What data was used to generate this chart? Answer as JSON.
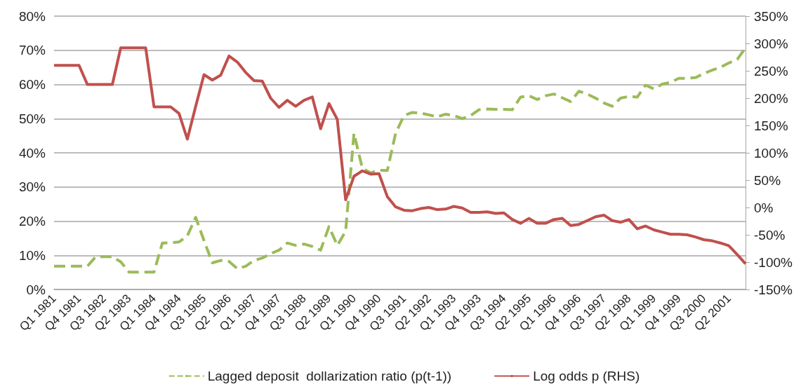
{
  "chart_data": {
    "type": "line",
    "categories": [
      "Q1 1981",
      null,
      null,
      "Q4 1981",
      null,
      null,
      "Q3 1982",
      null,
      null,
      "Q2 1983",
      null,
      null,
      "Q1 1984",
      null,
      null,
      "Q4 1984",
      null,
      null,
      "Q3 1985",
      null,
      null,
      "Q2 1986",
      null,
      null,
      "Q1 1987",
      null,
      null,
      "Q4 1987",
      null,
      null,
      "Q3 1988",
      null,
      null,
      "Q2 1989",
      null,
      null,
      "Q1 1990",
      null,
      null,
      "Q4 1990",
      null,
      null,
      "Q3 1991",
      null,
      null,
      "Q2 1992",
      null,
      null,
      "Q1 1993",
      null,
      null,
      "Q4 1993",
      null,
      null,
      "Q3 1994",
      null,
      null,
      "Q2 1995",
      null,
      null,
      "Q1 1996",
      null,
      null,
      "Q4 1996",
      null,
      null,
      "Q3 1997",
      null,
      null,
      "Q2 1998",
      null,
      null,
      "Q1 1999",
      null,
      null,
      "Q4 1999",
      null,
      null,
      "Q3 2000",
      null,
      null,
      "Q2 2001",
      null,
      null
    ],
    "series": [
      {
        "name": "Lagged deposit  dollarization ratio (p(t-1))",
        "color": "#9bbb59",
        "line_style": "dashed",
        "values": [
          6.8,
          6.8,
          6.8,
          6.8,
          6.8,
          9.6,
          9.6,
          9.6,
          8.1,
          5.1,
          5.1,
          5.1,
          5.1,
          13.6,
          13.7,
          13.9,
          15.7,
          21.1,
          14.3,
          7.8,
          8.5,
          8.2,
          6.1,
          6.8,
          8.5,
          9.2,
          10.5,
          11.5,
          13.6,
          12.9,
          13.3,
          12.6,
          11.5,
          18.4,
          12.9,
          17,
          45.7,
          35.5,
          34.1,
          34.9,
          34.8,
          45.7,
          50.9,
          51.8,
          51.6,
          51.1,
          50.5,
          51.3,
          50.9,
          50,
          50.9,
          52.6,
          52.8,
          52.7,
          52.7,
          52.6,
          56.3,
          56.7,
          55.6,
          56.7,
          57.2,
          56.1,
          55,
          58,
          57.2,
          56,
          54.6,
          53.6,
          56,
          56.5,
          56.3,
          59.8,
          58.7,
          60.1,
          60.6,
          61.8,
          61.8,
          62,
          63.2,
          64.2,
          65,
          66.3,
          67.3,
          70.7
        ]
      },
      {
        "name": "Log odds p (RHS)",
        "color": "#c0504d",
        "line_style": "solid",
        "axis": "y2",
        "values": [
          260,
          260,
          260,
          260,
          225,
          225,
          225,
          225,
          292,
          292,
          292,
          292,
          184,
          184,
          184,
          172,
          125,
          185,
          243,
          233,
          242,
          277,
          266,
          247,
          232,
          231,
          200,
          183,
          196,
          185,
          196,
          202,
          144,
          190,
          161,
          14,
          57,
          67,
          61,
          62,
          20,
          1,
          -5,
          -6,
          -2,
          0,
          -4,
          -3,
          2,
          -1,
          -9,
          -9,
          -8,
          -11,
          -10,
          -22,
          -29,
          -20,
          -29,
          -29,
          -22,
          -20,
          -33,
          -31,
          -24,
          -17,
          -14,
          -24,
          -27,
          -22,
          -39,
          -34,
          -41,
          -45,
          -49,
          -49,
          -50,
          -54,
          -59,
          -61,
          -65,
          -70,
          -86,
          -103
        ]
      }
    ],
    "ylim": [
      0,
      80
    ],
    "yticks": [
      {
        "value": 0,
        "label": "0%"
      },
      {
        "value": 10,
        "label": "10%"
      },
      {
        "value": 20,
        "label": "20%"
      },
      {
        "value": 30,
        "label": "30%"
      },
      {
        "value": 40,
        "label": "40%"
      },
      {
        "value": 50,
        "label": "50%"
      },
      {
        "value": 60,
        "label": "60%"
      },
      {
        "value": 70,
        "label": "70%"
      },
      {
        "value": 80,
        "label": "80%"
      }
    ],
    "y2lim": [
      -150,
      350
    ],
    "y2ticks": [
      {
        "value": -150,
        "label": "-150%"
      },
      {
        "value": -100,
        "label": "-100%"
      },
      {
        "value": -50,
        "label": "-50%"
      },
      {
        "value": 0,
        "label": "0%"
      },
      {
        "value": 50,
        "label": "50%"
      },
      {
        "value": 100,
        "label": "100%"
      },
      {
        "value": 150,
        "label": "150%"
      },
      {
        "value": 200,
        "label": "200%"
      },
      {
        "value": 250,
        "label": "250%"
      },
      {
        "value": 300,
        "label": "300%"
      },
      {
        "value": 350,
        "label": "350%"
      }
    ],
    "grid": "y",
    "legend": "bottom",
    "marker": "none"
  }
}
